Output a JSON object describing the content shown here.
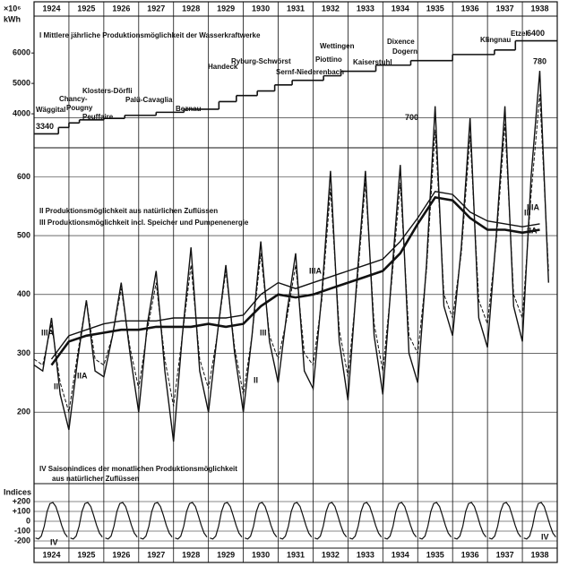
{
  "chart_data": [
    {
      "type": "step",
      "title": "I Mittlere jährliche Produktionsmöglichkeit der Wasserkraftwerke",
      "y_unit_top": "×10⁶",
      "y_unit": "kWh",
      "xlim": [
        1924,
        1939
      ],
      "xticks": [
        1924,
        1925,
        1926,
        1927,
        1928,
        1929,
        1930,
        1931,
        1932,
        1933,
        1934,
        1935,
        1936,
        1937,
        1938
      ],
      "ylim": [
        3000,
        6300
      ],
      "yticks": [
        4000,
        5000,
        6000
      ],
      "x": [
        1924,
        1924.7,
        1925.0,
        1925.3,
        1926.0,
        1926.6,
        1927.5,
        1928.3,
        1929.3,
        1929.8,
        1930.4,
        1930.9,
        1931.4,
        1932.3,
        1932.8,
        1933.8,
        1934.8,
        1936.0,
        1937.2,
        1937.8
      ],
      "values": [
        3340,
        3550,
        3700,
        3800,
        3850,
        3950,
        4050,
        4150,
        4400,
        4600,
        4750,
        4950,
        5100,
        5250,
        5400,
        5600,
        5750,
        5950,
        6100,
        6400
      ],
      "color": "#111111",
      "annotations": [
        "Wäggital",
        "Chancy-",
        "Pougny",
        "Klosters-Dörfli",
        "Peuffaire",
        "Palü-Cavaglia",
        "Beznau",
        "Handeck",
        "Ryburg-Schwörst",
        "Piottino",
        "Sernf-Niederenbach",
        "Wettingen",
        "Kaiserstuhl",
        "Dixence",
        "Dogern",
        "Klingnau",
        "Etzel"
      ]
    },
    {
      "type": "line",
      "legend": [
        "II Produktionsmöglichkeit aus natürlichen Zuflüssen",
        "III Produktionsmöglichkeit incl. Speicher und Pumpenenergie"
      ],
      "ylim": [
        150,
        800
      ],
      "yticks": [
        200,
        300,
        400,
        500,
        600,
        700
      ],
      "grid": true,
      "series": [
        {
          "name": "II",
          "color": "#111111",
          "dashed": false,
          "x": [
            1924.0,
            1924.25,
            1924.5,
            1924.75,
            1925.0,
            1925.25,
            1925.5,
            1925.75,
            1926.0,
            1926.25,
            1926.5,
            1926.75,
            1927.0,
            1927.25,
            1927.5,
            1927.75,
            1928.0,
            1928.25,
            1928.5,
            1928.75,
            1929.0,
            1929.25,
            1929.5,
            1929.75,
            1930.0,
            1930.25,
            1930.5,
            1930.75,
            1931.0,
            1931.25,
            1931.5,
            1931.75,
            1932.0,
            1932.25,
            1932.5,
            1932.75,
            1933.0,
            1933.25,
            1933.5,
            1933.75,
            1934.0,
            1934.25,
            1934.5,
            1934.75,
            1935.0,
            1935.25,
            1935.5,
            1935.75,
            1936.0,
            1936.25,
            1936.5,
            1936.75,
            1937.0,
            1937.25,
            1937.5,
            1937.75,
            1938.0,
            1938.25,
            1938.5,
            1938.75
          ],
          "values": [
            280,
            270,
            360,
            230,
            170,
            290,
            390,
            270,
            260,
            330,
            420,
            300,
            200,
            350,
            440,
            270,
            150,
            330,
            480,
            270,
            200,
            330,
            450,
            300,
            200,
            330,
            490,
            320,
            250,
            370,
            470,
            270,
            240,
            400,
            610,
            320,
            220,
            420,
            610,
            330,
            230,
            430,
            620,
            300,
            250,
            450,
            720,
            380,
            330,
            480,
            700,
            360,
            310,
            500,
            720,
            380,
            320,
            600,
            780,
            420
          ]
        },
        {
          "name": "III",
          "color": "#111111",
          "dashed": true,
          "x": [
            1924.0,
            1924.25,
            1924.5,
            1924.75,
            1925.0,
            1925.25,
            1925.5,
            1925.75,
            1926.0,
            1926.25,
            1926.5,
            1926.75,
            1927.0,
            1927.25,
            1927.5,
            1927.75,
            1928.0,
            1928.25,
            1928.5,
            1928.75,
            1929.0,
            1929.25,
            1929.5,
            1929.75,
            1930.0,
            1930.25,
            1930.5,
            1930.75,
            1931.0,
            1931.25,
            1931.5,
            1931.75,
            1932.0,
            1932.25,
            1932.5,
            1932.75,
            1933.0,
            1933.25,
            1933.5,
            1933.75,
            1934.0,
            1934.25,
            1934.5,
            1934.75,
            1935.0,
            1935.25,
            1935.5,
            1935.75,
            1936.0,
            1936.25,
            1936.5,
            1936.75,
            1937.0,
            1937.25,
            1937.5,
            1937.75,
            1938.0,
            1938.25,
            1938.5,
            1938.75
          ],
          "values": [
            290,
            280,
            350,
            250,
            200,
            300,
            390,
            290,
            280,
            330,
            410,
            310,
            240,
            340,
            420,
            290,
            210,
            330,
            450,
            290,
            240,
            330,
            440,
            310,
            230,
            330,
            470,
            330,
            290,
            360,
            450,
            300,
            280,
            390,
            580,
            340,
            260,
            410,
            590,
            350,
            270,
            420,
            590,
            330,
            300,
            440,
            680,
            400,
            360,
            470,
            670,
            390,
            350,
            490,
            690,
            400,
            360,
            570,
            740,
            440
          ]
        },
        {
          "name": "IIA",
          "color": "#111111",
          "dashed": false,
          "thick": true,
          "x": [
            1924.5,
            1925.0,
            1925.5,
            1926.0,
            1926.5,
            1927.0,
            1927.5,
            1928.0,
            1928.5,
            1929.0,
            1929.5,
            1930.0,
            1930.5,
            1931.0,
            1931.5,
            1932.0,
            1932.5,
            1933.0,
            1933.5,
            1934.0,
            1934.5,
            1935.0,
            1935.5,
            1936.0,
            1936.5,
            1937.0,
            1937.5,
            1938.0,
            1938.5
          ],
          "values": [
            280,
            320,
            330,
            335,
            340,
            340,
            345,
            345,
            345,
            350,
            345,
            350,
            380,
            400,
            395,
            400,
            410,
            420,
            430,
            440,
            470,
            520,
            565,
            560,
            530,
            510,
            510,
            505,
            510
          ]
        },
        {
          "name": "IIIA",
          "color": "#111111",
          "dashed": false,
          "thick": false,
          "x": [
            1924.5,
            1925.0,
            1925.5,
            1926.0,
            1926.5,
            1927.0,
            1927.5,
            1928.0,
            1928.5,
            1929.0,
            1929.5,
            1930.0,
            1930.5,
            1931.0,
            1931.5,
            1932.0,
            1932.5,
            1933.0,
            1933.5,
            1934.0,
            1934.5,
            1935.0,
            1935.5,
            1936.0,
            1936.5,
            1937.0,
            1937.5,
            1938.0,
            1938.5
          ],
          "values": [
            290,
            330,
            340,
            350,
            355,
            355,
            355,
            360,
            360,
            360,
            360,
            365,
            400,
            420,
            410,
            420,
            430,
            440,
            450,
            460,
            490,
            530,
            575,
            570,
            540,
            525,
            520,
            515,
            520
          ]
        }
      ]
    },
    {
      "type": "seasonal",
      "title": [
        "IV Saisonindices der monatlichen Produktionsmöglichkeit",
        "aus natürlicher Zuflüssen"
      ],
      "y_label": "Indices",
      "ylim": [
        -250,
        250
      ],
      "yticks": [
        {
          "value": 200,
          "label": "+200"
        },
        {
          "value": 100,
          "label": "+100"
        },
        0,
        -100,
        -200
      ],
      "series": [
        {
          "name": "IV",
          "color": "#111111",
          "values": [
            -170,
            -180,
            -150,
            -50,
            100,
            180,
            190,
            150,
            60,
            -40,
            -120,
            -160
          ]
        }
      ]
    }
  ]
}
